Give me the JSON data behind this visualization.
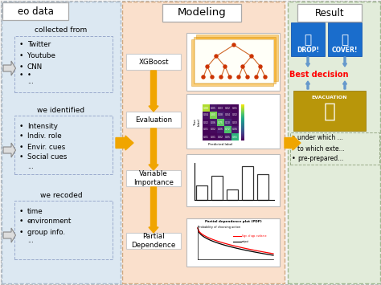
{
  "bg_color": "#f5f5f5",
  "left_panel_bg": "#dce8f2",
  "left_panel_ec": "#aabbcc",
  "middle_panel_bg": "#fae0cc",
  "middle_panel_ec": "#d0a880",
  "right_panel_bg": "#e2ecda",
  "right_panel_ec": "#a0b890",
  "arrow_orange": "#f0a500",
  "arrow_blue": "#6699cc",
  "white": "#ffffff",
  "left_header": "eo data",
  "middle_header": "Modeling",
  "right_header": "Result",
  "left_sections": [
    {
      "header": "collected from",
      "items": [
        "Twitter",
        "Youtube",
        "CNN",
        ".",
        "..."
      ]
    },
    {
      "header": "we identified",
      "items": [
        "Intensity",
        "Indiv. role",
        "Envir. cues",
        "Social cues",
        ".",
        "..."
      ]
    },
    {
      "header": "we recoded",
      "items": [
        "time",
        "environment",
        "group info.",
        ".",
        "..."
      ]
    }
  ],
  "middle_steps": [
    "XGBoost",
    "Evaluation",
    "Variable\nImportance",
    "Partial\nDependence"
  ],
  "drop_cover": [
    "DROP!",
    "COVER!"
  ],
  "best_decision": "Best decision",
  "evac_label": "EVACUATION",
  "bullet_right": [
    "under which ...",
    "to which exte...",
    "pre-prepared..."
  ]
}
